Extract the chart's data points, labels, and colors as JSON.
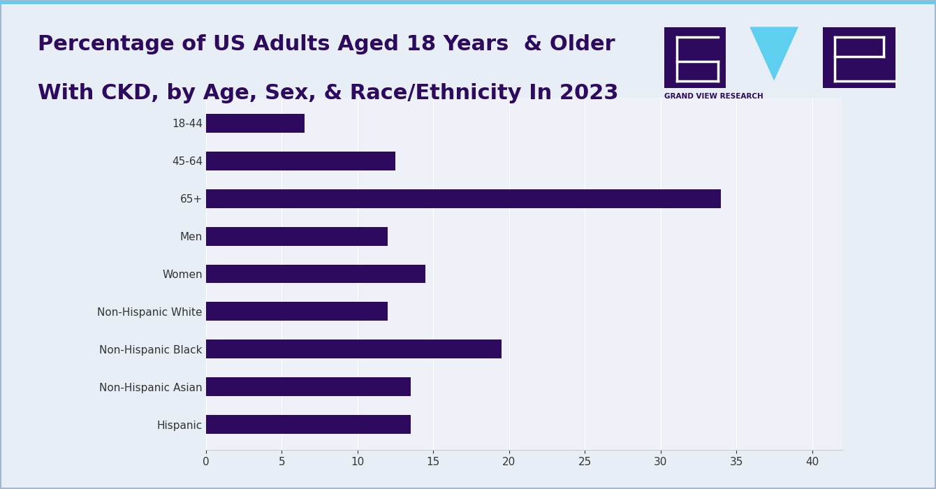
{
  "title_line1": "Percentage of US Adults Aged 18 Years  & Older",
  "title_line2": "With CKD, by Age, Sex, & Race/Ethnicity In 2023",
  "title_color": "#2d0a5e",
  "title_fontsize": 22,
  "background_color": "#e8eef5",
  "plot_bg_color": "#eef2f8",
  "bar_color": "#2d0a5e",
  "categories": [
    "Hispanic",
    "Non-Hispanic Asian",
    "Non-Hispanic Black",
    "Non-Hispanic White",
    "Women",
    "Men",
    "65+",
    "45-64",
    "18-44"
  ],
  "values": [
    13.5,
    13.5,
    19.5,
    12.0,
    14.5,
    12.0,
    34.0,
    12.5,
    6.5
  ],
  "xlim": [
    0,
    42
  ],
  "xticks": [
    0,
    5,
    10,
    15,
    20,
    25,
    30,
    35,
    40
  ],
  "tick_fontsize": 11,
  "label_fontsize": 11,
  "label_color": "#333333",
  "logo_dark_color": "#2d0a5e",
  "logo_cyan_color": "#5ecfef",
  "logo_text": "GRAND VIEW RESEARCH",
  "logo_text_color": "#2d0a5e",
  "border_color": "#a0b8d0"
}
